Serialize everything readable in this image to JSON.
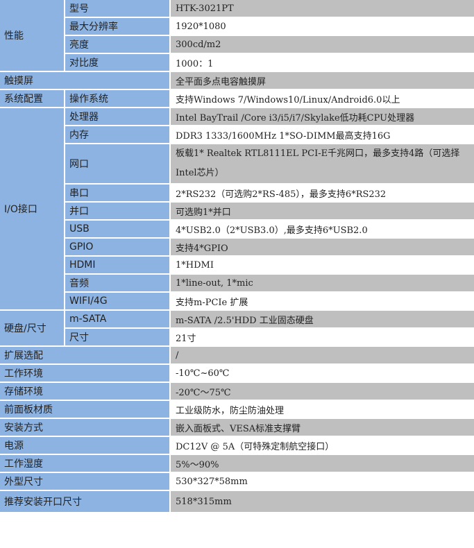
{
  "colors": {
    "label_bg": "#8db3e2",
    "value_grey": "#bfbfbf",
    "value_white": "#ffffff"
  },
  "sections": [
    {
      "label": "性能",
      "items": [
        {
          "label": "型号",
          "value": "HTK-3021PT"
        },
        {
          "label": "最大分辨率",
          "value": "1920*1080"
        },
        {
          "label": "亮度",
          "value": "300cd/m2"
        },
        {
          "label": "对比度",
          "value": "1000：1"
        }
      ]
    },
    {
      "label": "触摸屏",
      "value": "全平面多点电容触摸屏"
    },
    {
      "label": "系统配置",
      "items": [
        {
          "label": "操作系统",
          "value": "支持Windows 7/Windows10/Linux/Android6.0以上"
        }
      ]
    },
    {
      "label": "I/O接口",
      "items": [
        {
          "label": "处理器",
          "value": "Intel BayTrail /Core i3/i5/i7/Skylake低功耗CPU处理器"
        },
        {
          "label": "内存",
          "value": "DDR3 1333/1600MHz     1*SO-DIMM最高支持16G"
        },
        {
          "label": "网口",
          "value": "板载1* Realtek RTL8111EL PCI-E千兆网口，最多支持4路（可选择Intel芯片）",
          "wrap": true
        },
        {
          "label": "串口",
          "value": "2*RS232（可选购2*RS-485），最多支持6*RS232"
        },
        {
          "label": "并口",
          "value": "可选购1*并口"
        },
        {
          "label": "USB",
          "value": "4*USB2.0（2*USB3.0）,最多支持6*USB2.0"
        },
        {
          "label": "GPIO",
          "value": "支持4*GPIO"
        },
        {
          "label": "HDMI",
          "value": "1*HDMI"
        },
        {
          "label": "音频",
          "value": "1*line-out, 1*mic"
        },
        {
          "label": "WIFI/4G",
          "value": "支持m-PCIe 扩展"
        }
      ]
    },
    {
      "label": "硬盘/尺寸",
      "items": [
        {
          "label": "m-SATA",
          "value": "m-SATA /2.5'HDD 工业固态硬盘"
        },
        {
          "label": "尺寸",
          "value": "21寸"
        }
      ]
    },
    {
      "label": "扩展选配",
      "value": "/"
    },
    {
      "label": "工作环境",
      "value": "-10℃~60℃"
    },
    {
      "label": "存储环境",
      "value": "-20℃～75℃"
    },
    {
      "label": "前面板材质",
      "value": "工业级防水，防尘防油处理"
    },
    {
      "label": "安装方式",
      "value": "嵌入面板式、VESA标准支撑臂"
    },
    {
      "label": "电源",
      "value": "DC12V @ 5A（可特殊定制航空接口）"
    },
    {
      "label": "工作湿度",
      "value": "5%～90%"
    },
    {
      "label": "外型尺寸",
      "value": "530*327*58mm"
    },
    {
      "label": "推荐安装开口尺寸",
      "value": "518*315mm"
    }
  ]
}
